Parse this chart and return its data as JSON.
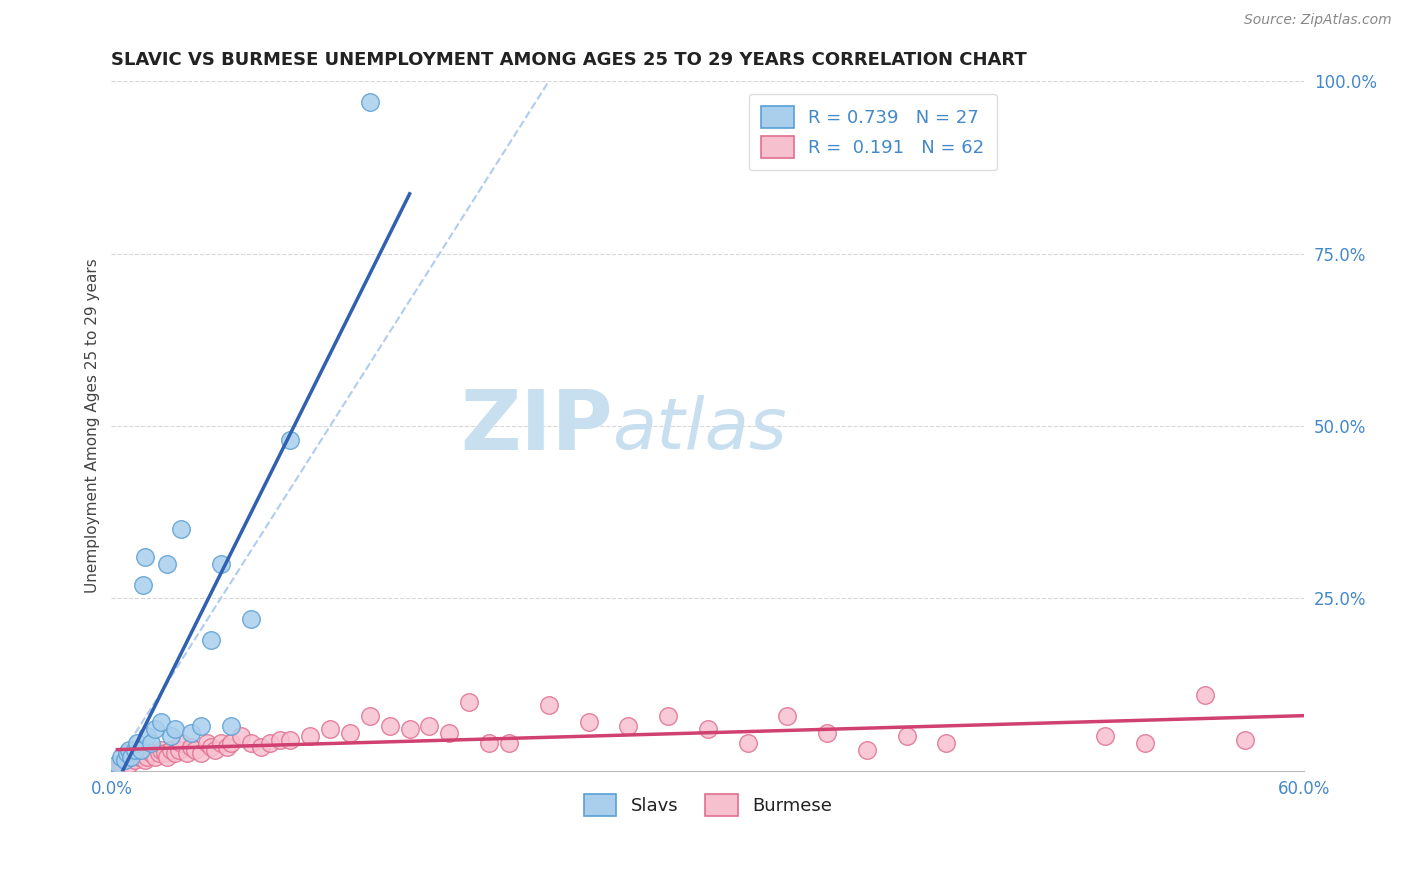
{
  "title": "SLAVIC VS BURMESE UNEMPLOYMENT AMONG AGES 25 TO 29 YEARS CORRELATION CHART",
  "source_text": "Source: ZipAtlas.com",
  "ylabel": "Unemployment Among Ages 25 to 29 years",
  "xlim": [
    0.0,
    0.6
  ],
  "ylim": [
    0.0,
    1.0
  ],
  "xticks": [
    0.0,
    0.1,
    0.2,
    0.3,
    0.4,
    0.5,
    0.6
  ],
  "xticklabels": [
    "0.0%",
    "",
    "",
    "",
    "",
    "",
    "60.0%"
  ],
  "yticks": [
    0.0,
    0.25,
    0.5,
    0.75,
    1.0
  ],
  "yticklabels": [
    "",
    "25.0%",
    "50.0%",
    "75.0%",
    "100.0%"
  ],
  "slavs_fill_color": "#aacfed",
  "slavs_edge_color": "#5a9fd4",
  "burmese_fill_color": "#f7c0cf",
  "burmese_edge_color": "#e07090",
  "slavs_line_color": "#3060b0",
  "burmese_line_color": "#d04070",
  "ref_line_color": "#b0ccee",
  "legend_slavs_R": "0.739",
  "legend_slavs_N": "27",
  "legend_burmese_R": "0.191",
  "legend_burmese_N": "62",
  "watermark_zip": "ZIP",
  "watermark_atlas": "atlas",
  "watermark_color_zip": "#c8dff0",
  "watermark_color_atlas": "#c8dff0",
  "grid_color": "#d8d8d8",
  "slavs_x": [
    0.003,
    0.005,
    0.007,
    0.008,
    0.009,
    0.01,
    0.012,
    0.013,
    0.015,
    0.016,
    0.017,
    0.018,
    0.02,
    0.022,
    0.025,
    0.028,
    0.03,
    0.032,
    0.035,
    0.04,
    0.045,
    0.05,
    0.055,
    0.06,
    0.07,
    0.09,
    0.13
  ],
  "slavs_y": [
    0.01,
    0.02,
    0.015,
    0.025,
    0.03,
    0.02,
    0.03,
    0.04,
    0.03,
    0.27,
    0.31,
    0.05,
    0.04,
    0.06,
    0.07,
    0.3,
    0.05,
    0.06,
    0.35,
    0.055,
    0.065,
    0.19,
    0.3,
    0.065,
    0.22,
    0.48,
    0.97
  ],
  "burmese_x": [
    0.003,
    0.005,
    0.007,
    0.009,
    0.01,
    0.012,
    0.014,
    0.015,
    0.017,
    0.018,
    0.02,
    0.022,
    0.024,
    0.025,
    0.027,
    0.028,
    0.03,
    0.032,
    0.034,
    0.035,
    0.038,
    0.04,
    0.042,
    0.045,
    0.048,
    0.05,
    0.052,
    0.055,
    0.058,
    0.06,
    0.065,
    0.07,
    0.075,
    0.08,
    0.085,
    0.09,
    0.1,
    0.11,
    0.12,
    0.13,
    0.14,
    0.15,
    0.16,
    0.17,
    0.18,
    0.19,
    0.2,
    0.22,
    0.24,
    0.26,
    0.28,
    0.3,
    0.32,
    0.34,
    0.36,
    0.38,
    0.4,
    0.42,
    0.5,
    0.52,
    0.55,
    0.57
  ],
  "burmese_y": [
    0.005,
    0.01,
    0.015,
    0.01,
    0.02,
    0.015,
    0.02,
    0.025,
    0.015,
    0.02,
    0.025,
    0.02,
    0.025,
    0.03,
    0.025,
    0.02,
    0.03,
    0.025,
    0.03,
    0.04,
    0.025,
    0.035,
    0.03,
    0.025,
    0.04,
    0.035,
    0.03,
    0.04,
    0.035,
    0.04,
    0.05,
    0.04,
    0.035,
    0.04,
    0.045,
    0.045,
    0.05,
    0.06,
    0.055,
    0.08,
    0.065,
    0.06,
    0.065,
    0.055,
    0.1,
    0.04,
    0.04,
    0.095,
    0.07,
    0.065,
    0.08,
    0.06,
    0.04,
    0.08,
    0.055,
    0.03,
    0.05,
    0.04,
    0.05,
    0.04,
    0.11,
    0.045
  ]
}
